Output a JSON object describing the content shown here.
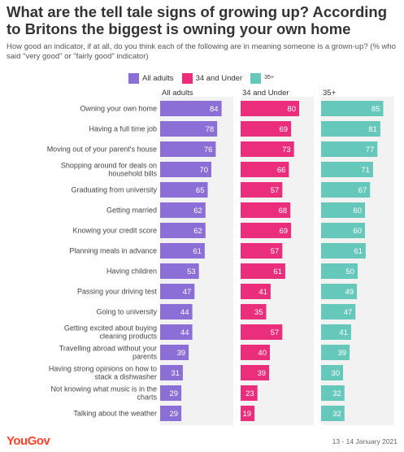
{
  "title": "What are the tell tale signs of growing up? According to Britons the biggest is owning your own home",
  "subtitle": "How good an indicator, if at all, do you think each of the following are in meaning someone is a grown-up? (% who said \"very good\" or \"fairly good\" indicator)",
  "legend": [
    {
      "label": "All adults",
      "color": "#8b6fd6"
    },
    {
      "label": "34 and Under",
      "color": "#ea2e7b"
    },
    {
      "label": "35+",
      "color": "#66c8bb"
    }
  ],
  "footer": {
    "brand": "YouGov",
    "date": "13 - 14 January 2021"
  },
  "chart_data": {
    "type": "bar",
    "orientation": "horizontal",
    "panels": [
      "All adults",
      "34 and Under",
      "35+"
    ],
    "xlim": [
      0,
      100
    ],
    "categories": [
      "Owning your own home",
      "Having a full time job",
      "Moving out of your parent's house",
      "Shopping around for deals on household bills",
      "Graduating from university",
      "Getting married",
      "Knowing your credit score",
      "Planning meals in advance",
      "Having children",
      "Passing your driving test",
      "Going to university",
      "Getting excited about buying cleaning products",
      "Travelling abroad without your parents",
      "Having strong opinions on how to stack a dishwasher",
      "Not knowing what music is in the charts",
      "Talking about the weather"
    ],
    "series": [
      {
        "name": "All adults",
        "color": "#8b6fd6",
        "values": [
          84,
          78,
          76,
          70,
          65,
          62,
          62,
          61,
          53,
          47,
          44,
          44,
          39,
          31,
          29,
          29
        ]
      },
      {
        "name": "34 and Under",
        "color": "#ea2e7b",
        "values": [
          80,
          69,
          73,
          66,
          57,
          68,
          69,
          57,
          61,
          41,
          35,
          57,
          40,
          39,
          23,
          19
        ]
      },
      {
        "name": "35+",
        "color": "#66c8bb",
        "values": [
          85,
          81,
          77,
          71,
          67,
          60,
          60,
          61,
          50,
          49,
          47,
          41,
          39,
          30,
          32,
          32
        ]
      }
    ],
    "panel_background": "#f2f2f2"
  }
}
